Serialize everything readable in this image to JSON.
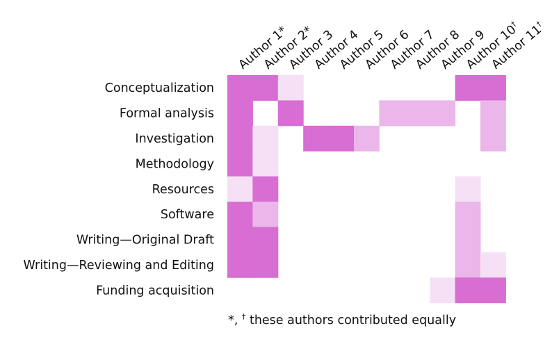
{
  "chart_data": {
    "type": "heatmap",
    "columns": [
      "Author 1*",
      "Author 2*",
      "Author 3",
      "Author 4",
      "Author 5",
      "Author 6",
      "Author 7",
      "Author 8",
      "Author 9",
      "Author 10†",
      "Author 11†"
    ],
    "rows": [
      "Conceptualization",
      "Formal analysis",
      "Investigation",
      "Methodology",
      "Resources",
      "Software",
      "Writing—Original Draft",
      "Writing—Reviewing and Editing",
      "Funding acquisition"
    ],
    "values": [
      [
        3,
        3,
        1,
        0,
        0,
        0,
        0,
        0,
        0,
        3,
        3
      ],
      [
        3,
        0,
        3,
        0,
        0,
        0,
        2,
        2,
        2,
        0,
        2
      ],
      [
        3,
        1,
        0,
        3,
        3,
        2,
        0,
        0,
        0,
        0,
        2
      ],
      [
        3,
        1,
        0,
        0,
        0,
        0,
        0,
        0,
        0,
        0,
        0
      ],
      [
        1,
        3,
        0,
        0,
        0,
        0,
        0,
        0,
        0,
        1,
        0
      ],
      [
        3,
        2,
        0,
        0,
        0,
        0,
        0,
        0,
        0,
        2,
        0
      ],
      [
        3,
        3,
        0,
        0,
        0,
        0,
        0,
        0,
        0,
        2,
        0
      ],
      [
        3,
        3,
        0,
        0,
        0,
        0,
        0,
        0,
        0,
        2,
        1
      ],
      [
        0,
        0,
        0,
        0,
        0,
        0,
        0,
        0,
        1,
        3,
        3
      ]
    ],
    "level_colors": [
      "#ffffff",
      "#f6e0f5",
      "#ebb6e9",
      "#d86dd4"
    ],
    "legend": "none",
    "grid": false
  },
  "footnote": {
    "symbols": "*, ",
    "dagger": "†",
    "text": " these authors contributed equally"
  }
}
